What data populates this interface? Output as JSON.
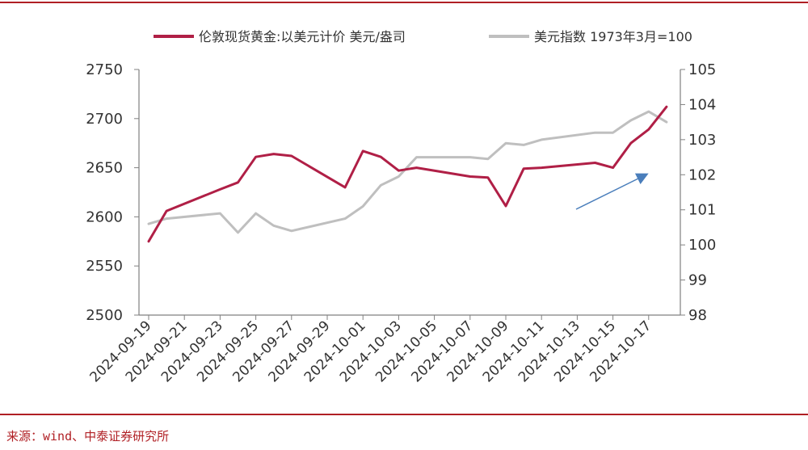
{
  "chart_data": {
    "type": "line",
    "title": "",
    "xlabel": "",
    "ylabel": "",
    "x": [
      "2024-09-19",
      "2024-09-20",
      "2024-09-23",
      "2024-09-24",
      "2024-09-25",
      "2024-09-26",
      "2024-09-27",
      "2024-09-30",
      "2024-10-01",
      "2024-10-02",
      "2024-10-03",
      "2024-10-04",
      "2024-10-07",
      "2024-10-08",
      "2024-10-09",
      "2024-10-10",
      "2024-10-11",
      "2024-10-14",
      "2024-10-15",
      "2024-10-16",
      "2024-10-17",
      "2024-10-18"
    ],
    "xticks": [
      "2024-09-19",
      "2024-09-21",
      "2024-09-23",
      "2024-09-25",
      "2024-09-27",
      "2024-09-29",
      "2024-10-01",
      "2024-10-03",
      "2024-10-05",
      "2024-10-07",
      "2024-10-09",
      "2024-10-11",
      "2024-10-13",
      "2024-10-15",
      "2024-10-17"
    ],
    "y_left": {
      "lim": [
        2500,
        2750
      ],
      "ticks": [
        "2500",
        "2550",
        "2600",
        "2650",
        "2700",
        "2750"
      ]
    },
    "y_right": {
      "lim": [
        98,
        105
      ],
      "ticks": [
        "98",
        "99",
        "100",
        "101",
        "102",
        "103",
        "104",
        "105"
      ]
    },
    "series": [
      {
        "name": "伦敦现货黄金:以美元计价 美元/盎司",
        "axis": "left",
        "color": "#b01f46",
        "values": [
          2575,
          2606,
          2628,
          2635,
          2661,
          2664,
          2662,
          2630,
          2667,
          2661,
          2647,
          2650,
          2641,
          2640,
          2611,
          2649,
          2650,
          2655,
          2650,
          2675,
          2689,
          2712
        ]
      },
      {
        "name": "美元指数 1973年3月=100",
        "axis": "right",
        "color": "#bfbfbf",
        "values": [
          100.6,
          100.75,
          100.9,
          100.35,
          100.9,
          100.55,
          100.4,
          100.75,
          101.1,
          101.7,
          101.95,
          102.5,
          102.5,
          102.45,
          102.9,
          102.85,
          103.0,
          103.2,
          103.2,
          103.55,
          103.8,
          103.5
        ]
      }
    ],
    "grid": false,
    "legend_position": "top"
  },
  "source": "来源：wind、中泰证券研究所"
}
